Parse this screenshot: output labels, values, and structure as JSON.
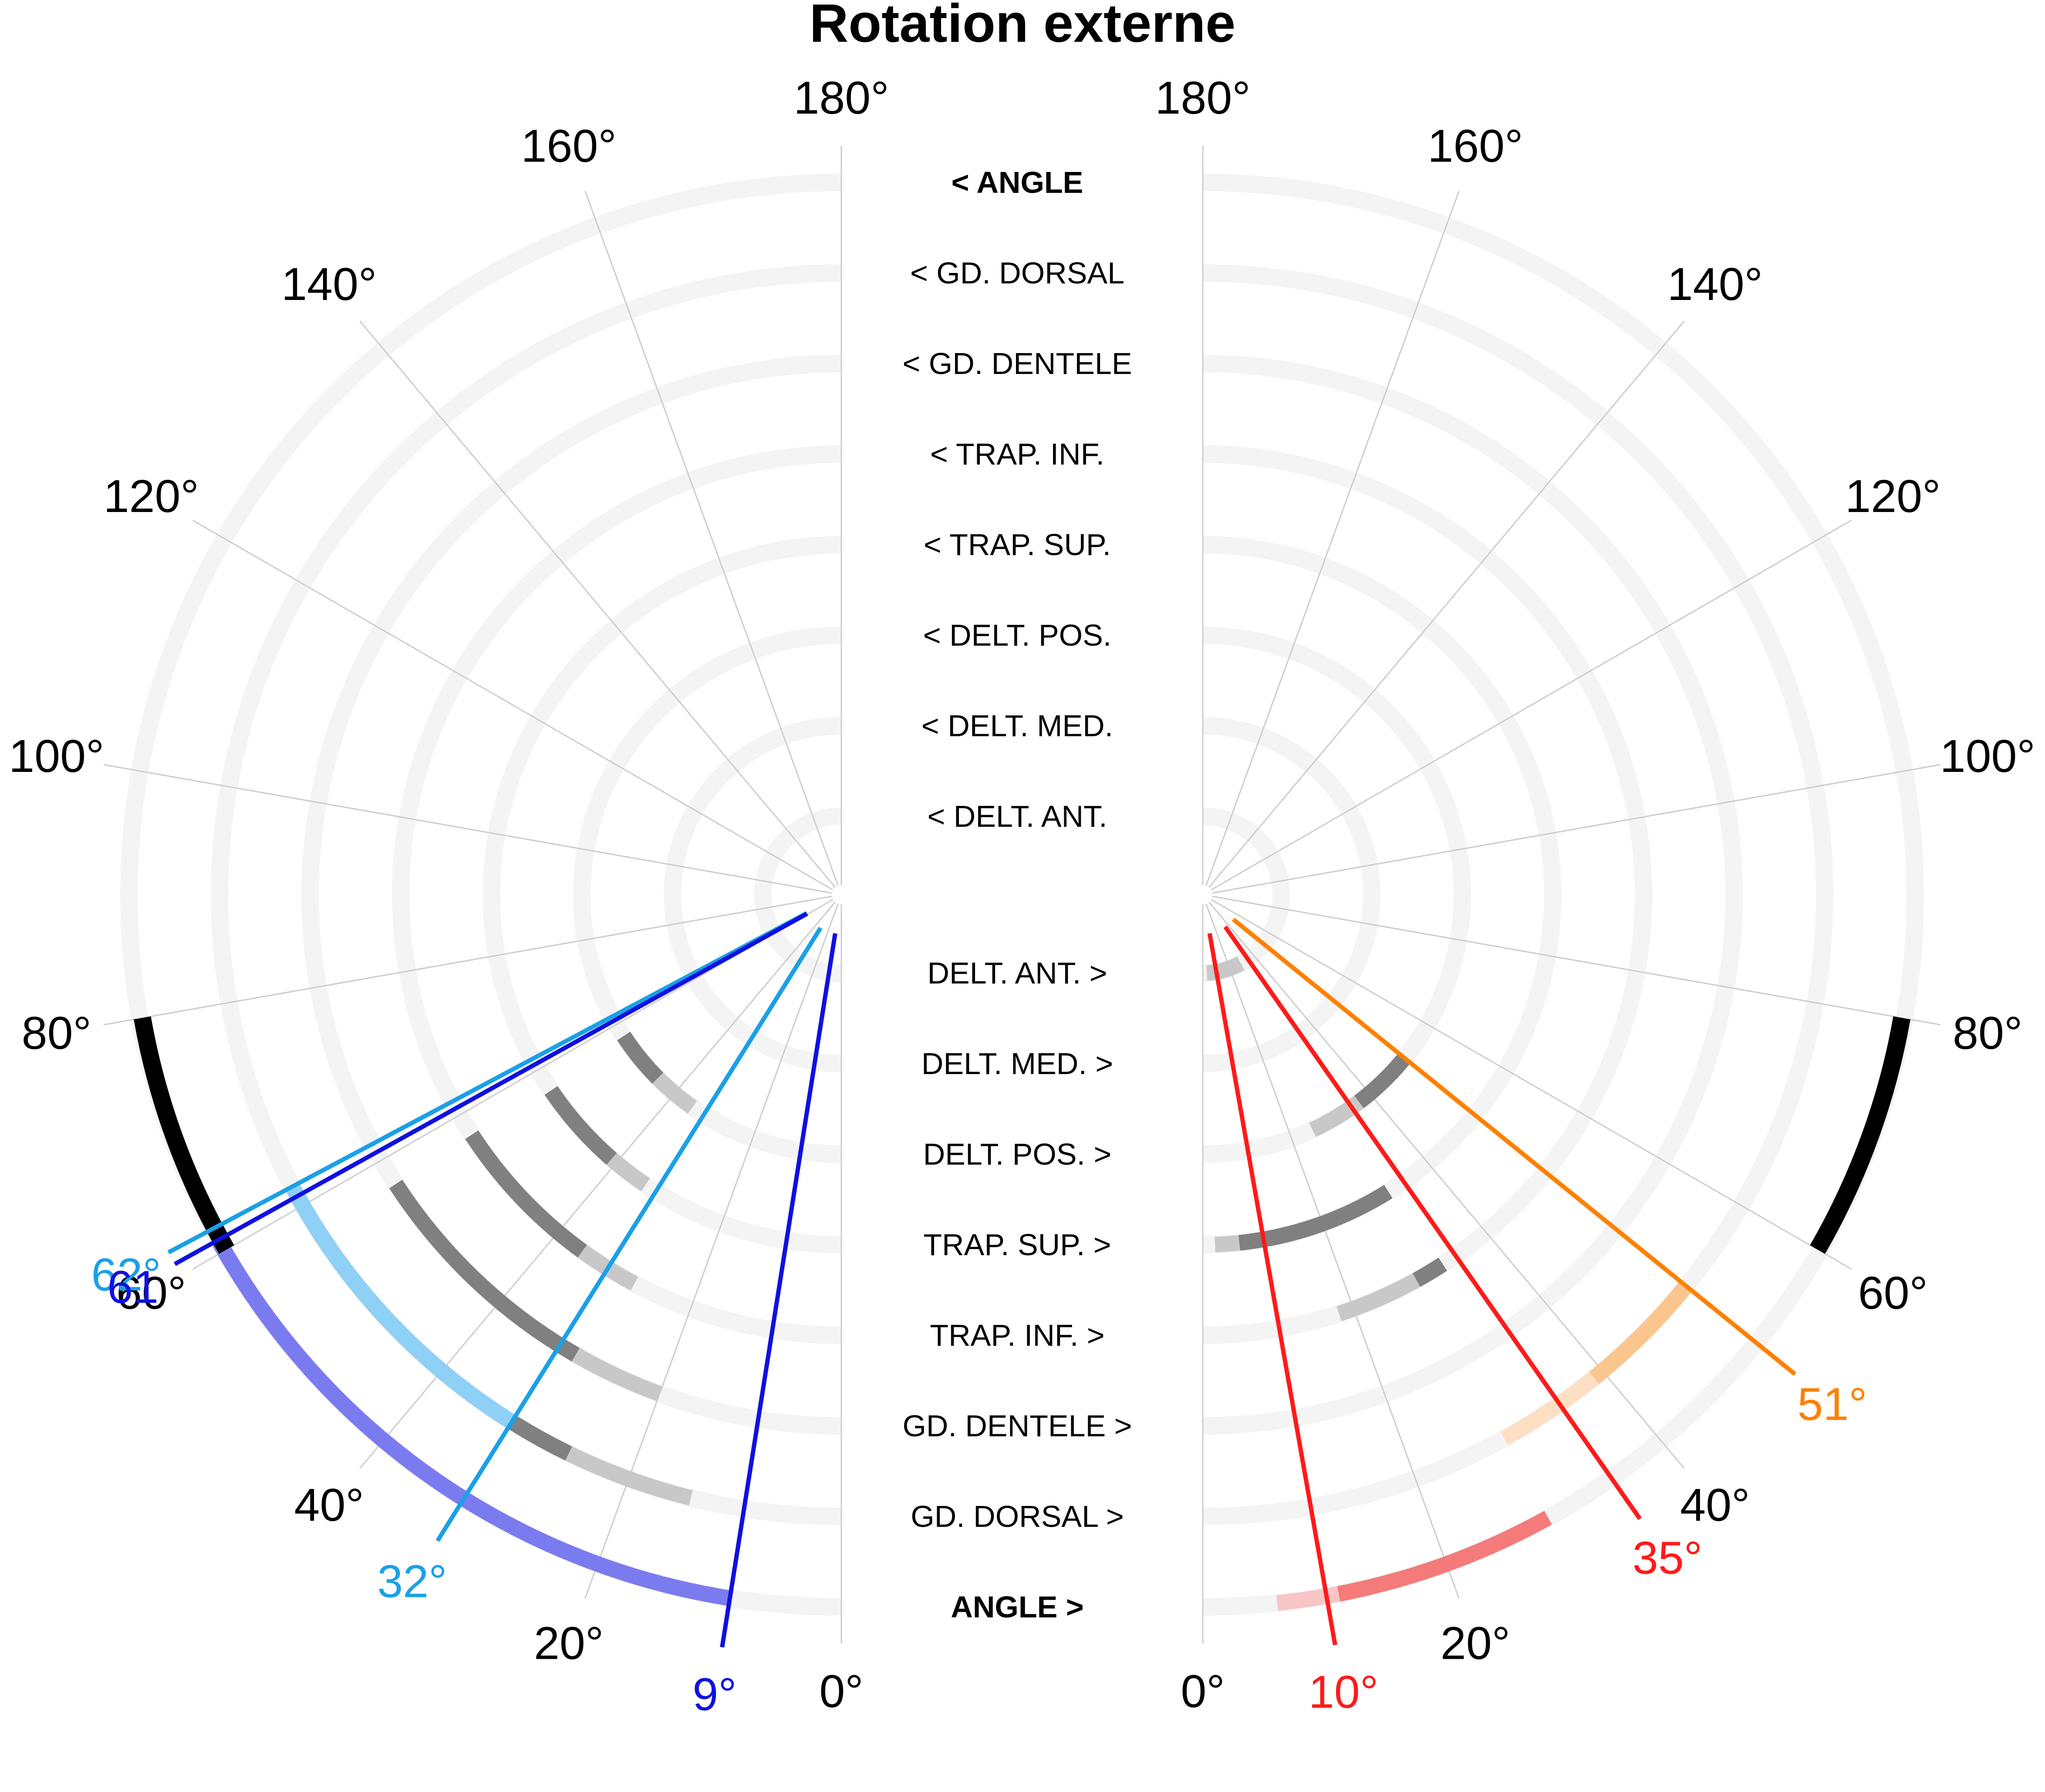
{
  "chart_data": {
    "type": "polar-range",
    "title": "Rotation externe",
    "angle_ticks": [
      "0°",
      "20°",
      "40°",
      "60°",
      "80°",
      "100°",
      "120°",
      "140°",
      "160°",
      "180°"
    ],
    "upper_labels": [
      "< ANGLE",
      "< GD. DORSAL",
      "< GD. DENTELE",
      "< TRAP. INF.",
      "< TRAP. SUP.",
      "< DELT. POS.",
      "< DELT. MED.",
      "< DELT. ANT."
    ],
    "lower_labels": [
      "DELT. ANT. >",
      "DELT. MED. >",
      "DELT. POS. >",
      "TRAP. SUP. >",
      "TRAP. INF. >",
      "GD. DENTELE >",
      "GD. DORSAL >",
      "ANGLE >"
    ],
    "reference_range_deg": [
      60,
      80
    ],
    "colors": {
      "track": "#f4f4f4",
      "gridline": "#cccccc",
      "reference": "#000000",
      "left_blue": "#1010e0",
      "left_light_blue": "#1aa0e8",
      "right_red": "#ff1a1a",
      "right_orange": "#ff8000"
    },
    "left": {
      "markers": [
        {
          "value": 62,
          "label": "62°",
          "color": "#1aa0e8"
        },
        {
          "value": 61,
          "label": "61",
          "color": "#1010e0"
        },
        {
          "value": 32,
          "label": "32°",
          "color": "#1aa0e8"
        },
        {
          "value": 9,
          "label": "9°",
          "color": "#1010e0"
        }
      ],
      "angle_bars": [
        {
          "ring": 8,
          "from": 9,
          "to": 61,
          "color": "#7b7bf0",
          "opacity": 1
        },
        {
          "ring": 7,
          "from": 32,
          "to": 62,
          "color": "#8fd0f6",
          "opacity": 1
        }
      ],
      "muscle_bars": [
        {
          "ring": 7,
          "from": 14,
          "to": 26,
          "color": "#c8c8c8",
          "opacity": 1
        },
        {
          "ring": 7,
          "from": 26,
          "to": 61,
          "color": "#808080",
          "opacity": 1
        },
        {
          "ring": 6,
          "from": 20,
          "to": 30,
          "color": "#c8c8c8",
          "opacity": 1
        },
        {
          "ring": 6,
          "from": 30,
          "to": 57,
          "color": "#808080",
          "opacity": 1
        },
        {
          "ring": 5,
          "from": 28,
          "to": 36,
          "color": "#c8c8c8",
          "opacity": 1
        },
        {
          "ring": 5,
          "from": 36,
          "to": 57,
          "color": "#808080",
          "opacity": 1
        },
        {
          "ring": 4,
          "from": 34,
          "to": 41,
          "color": "#c8c8c8",
          "opacity": 1
        },
        {
          "ring": 4,
          "from": 41,
          "to": 56,
          "color": "#808080",
          "opacity": 1
        },
        {
          "ring": 3,
          "from": 35,
          "to": 45,
          "color": "#c8c8c8",
          "opacity": 1
        },
        {
          "ring": 3,
          "from": 45,
          "to": 57,
          "color": "#808080",
          "opacity": 1
        }
      ]
    },
    "right": {
      "markers": [
        {
          "value": 10,
          "label": "10°",
          "color": "#ff1a1a"
        },
        {
          "value": 35,
          "label": "35°",
          "color": "#ff8000"
        },
        {
          "value": 35,
          "label": "35°",
          "color": "#ff1a1a"
        },
        {
          "value": 51,
          "label": "51°",
          "color": "#ff8000"
        }
      ],
      "angle_bars": [
        {
          "ring": 8,
          "from": 6,
          "to": 11,
          "color": "#f8c6c6",
          "opacity": 1
        },
        {
          "ring": 8,
          "from": 11,
          "to": 29,
          "color": "#f57a7a",
          "opacity": 1
        },
        {
          "ring": 7,
          "from": 29,
          "to": 39,
          "color": "#fde0c4",
          "opacity": 1
        },
        {
          "ring": 7,
          "from": 39,
          "to": 51,
          "color": "#fbc58e",
          "opacity": 1
        }
      ],
      "muscle_bars": [
        {
          "ring": 5,
          "from": 18,
          "to": 29,
          "color": "#c8c8c8",
          "opacity": 1
        },
        {
          "ring": 5,
          "from": 29,
          "to": 33,
          "color": "#808080",
          "opacity": 1
        },
        {
          "ring": 4,
          "from": 2,
          "to": 6,
          "color": "#c8c8c8",
          "opacity": 1
        },
        {
          "ring": 4,
          "from": 6,
          "to": 32,
          "color": "#808080",
          "opacity": 1
        },
        {
          "ring": 3,
          "from": 25,
          "to": 37,
          "color": "#c8c8c8",
          "opacity": 1
        },
        {
          "ring": 3,
          "from": 37,
          "to": 51,
          "color": "#808080",
          "opacity": 1
        },
        {
          "ring": 1,
          "from": 3,
          "to": 29,
          "color": "#c8c8c8",
          "opacity": 1
        }
      ]
    }
  }
}
